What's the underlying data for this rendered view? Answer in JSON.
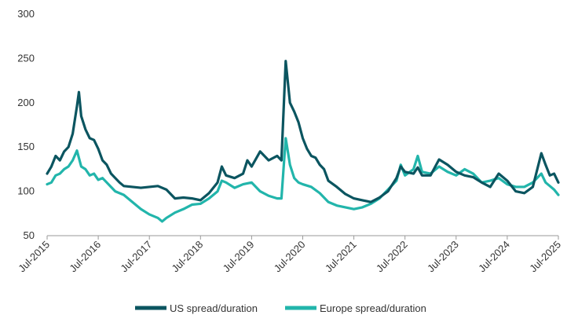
{
  "chart_data": {
    "type": "line",
    "title": "",
    "xlabel": "",
    "ylabel": "",
    "ylim": [
      50,
      300
    ],
    "xlim": [
      "2015-07",
      "2025-07"
    ],
    "grid": false,
    "legend": "bottom",
    "y_ticks": [
      "50",
      "100",
      "150",
      "200",
      "250",
      "300"
    ],
    "x_ticks": [
      "Jul-2015",
      "Jul-2016",
      "Jul-2017",
      "Jul-2018",
      "Jul-2019",
      "Jul-2020",
      "Jul-2021",
      "Jul-2022",
      "Jul-2023",
      "Jul-2024",
      "Jul-2025"
    ],
    "series": [
      {
        "name": "US spread/duration",
        "color": "#0b5560",
        "points": [
          [
            "2015-07",
            120
          ],
          [
            "2015-08",
            128
          ],
          [
            "2015-09",
            140
          ],
          [
            "2015-10",
            135
          ],
          [
            "2015-11",
            145
          ],
          [
            "2015-12",
            150
          ],
          [
            "2016-01",
            165
          ],
          [
            "2016-02",
            196
          ],
          [
            "2016-02-15",
            212
          ],
          [
            "2016-03",
            185
          ],
          [
            "2016-04",
            170
          ],
          [
            "2016-05",
            160
          ],
          [
            "2016-06",
            158
          ],
          [
            "2016-07",
            148
          ],
          [
            "2016-08",
            135
          ],
          [
            "2016-09",
            130
          ],
          [
            "2016-10",
            120
          ],
          [
            "2016-11",
            115
          ],
          [
            "2016-12",
            110
          ],
          [
            "2017-01",
            106
          ],
          [
            "2017-03",
            105
          ],
          [
            "2017-05",
            104
          ],
          [
            "2017-07",
            105
          ],
          [
            "2017-09",
            106
          ],
          [
            "2017-11",
            102
          ],
          [
            "2018-01",
            92
          ],
          [
            "2018-03",
            93
          ],
          [
            "2018-05",
            92
          ],
          [
            "2018-07",
            90
          ],
          [
            "2018-09",
            98
          ],
          [
            "2018-11",
            110
          ],
          [
            "2018-12",
            128
          ],
          [
            "2019-01",
            118
          ],
          [
            "2019-03",
            115
          ],
          [
            "2019-05",
            120
          ],
          [
            "2019-06",
            135
          ],
          [
            "2019-07",
            128
          ],
          [
            "2019-09",
            145
          ],
          [
            "2019-11",
            135
          ],
          [
            "2020-01",
            140
          ],
          [
            "2020-02",
            135
          ],
          [
            "2020-03",
            247
          ],
          [
            "2020-04",
            200
          ],
          [
            "2020-05",
            190
          ],
          [
            "2020-06",
            178
          ],
          [
            "2020-07",
            160
          ],
          [
            "2020-08",
            148
          ],
          [
            "2020-09",
            140
          ],
          [
            "2020-10",
            138
          ],
          [
            "2020-11",
            130
          ],
          [
            "2020-12",
            125
          ],
          [
            "2021-01",
            112
          ],
          [
            "2021-03",
            105
          ],
          [
            "2021-05",
            97
          ],
          [
            "2021-07",
            92
          ],
          [
            "2021-09",
            90
          ],
          [
            "2021-11",
            88
          ],
          [
            "2022-01",
            93
          ],
          [
            "2022-03",
            100
          ],
          [
            "2022-05",
            115
          ],
          [
            "2022-06",
            128
          ],
          [
            "2022-07",
            122
          ],
          [
            "2022-09",
            120
          ],
          [
            "2022-10",
            127
          ],
          [
            "2022-11",
            118
          ],
          [
            "2023-01",
            118
          ],
          [
            "2023-03",
            136
          ],
          [
            "2023-05",
            130
          ],
          [
            "2023-07",
            122
          ],
          [
            "2023-09",
            118
          ],
          [
            "2023-11",
            116
          ],
          [
            "2024-01",
            110
          ],
          [
            "2024-03",
            105
          ],
          [
            "2024-05",
            120
          ],
          [
            "2024-07",
            112
          ],
          [
            "2024-09",
            100
          ],
          [
            "2024-11",
            98
          ],
          [
            "2025-01",
            105
          ],
          [
            "2025-03",
            143
          ],
          [
            "2025-04",
            130
          ],
          [
            "2025-05",
            118
          ],
          [
            "2025-06",
            120
          ],
          [
            "2025-07",
            110
          ]
        ]
      },
      {
        "name": "Europe spread/duration",
        "color": "#22b5ab",
        "points": [
          [
            "2015-07",
            108
          ],
          [
            "2015-08",
            110
          ],
          [
            "2015-09",
            118
          ],
          [
            "2015-10",
            120
          ],
          [
            "2015-11",
            125
          ],
          [
            "2015-12",
            128
          ],
          [
            "2016-01",
            135
          ],
          [
            "2016-02",
            146
          ],
          [
            "2016-03",
            128
          ],
          [
            "2016-04",
            125
          ],
          [
            "2016-05",
            118
          ],
          [
            "2016-06",
            120
          ],
          [
            "2016-07",
            113
          ],
          [
            "2016-08",
            115
          ],
          [
            "2016-09",
            110
          ],
          [
            "2016-10",
            105
          ],
          [
            "2016-11",
            100
          ],
          [
            "2016-12",
            98
          ],
          [
            "2017-01",
            96
          ],
          [
            "2017-03",
            88
          ],
          [
            "2017-05",
            80
          ],
          [
            "2017-07",
            74
          ],
          [
            "2017-09",
            70
          ],
          [
            "2017-10",
            66
          ],
          [
            "2017-11",
            70
          ],
          [
            "2018-01",
            76
          ],
          [
            "2018-03",
            80
          ],
          [
            "2018-05",
            85
          ],
          [
            "2018-07",
            86
          ],
          [
            "2018-09",
            92
          ],
          [
            "2018-11",
            100
          ],
          [
            "2018-12",
            112
          ],
          [
            "2019-01",
            110
          ],
          [
            "2019-03",
            104
          ],
          [
            "2019-05",
            108
          ],
          [
            "2019-07",
            110
          ],
          [
            "2019-09",
            100
          ],
          [
            "2019-11",
            95
          ],
          [
            "2020-01",
            92
          ],
          [
            "2020-02",
            92
          ],
          [
            "2020-03",
            160
          ],
          [
            "2020-04",
            130
          ],
          [
            "2020-05",
            115
          ],
          [
            "2020-06",
            110
          ],
          [
            "2020-07",
            108
          ],
          [
            "2020-09",
            105
          ],
          [
            "2020-11",
            98
          ],
          [
            "2021-01",
            88
          ],
          [
            "2021-03",
            84
          ],
          [
            "2021-05",
            82
          ],
          [
            "2021-07",
            80
          ],
          [
            "2021-09",
            82
          ],
          [
            "2021-11",
            86
          ],
          [
            "2022-01",
            92
          ],
          [
            "2022-03",
            102
          ],
          [
            "2022-05",
            112
          ],
          [
            "2022-06",
            130
          ],
          [
            "2022-07",
            118
          ],
          [
            "2022-09",
            125
          ],
          [
            "2022-10",
            140
          ],
          [
            "2022-11",
            122
          ],
          [
            "2023-01",
            120
          ],
          [
            "2023-03",
            128
          ],
          [
            "2023-05",
            122
          ],
          [
            "2023-07",
            118
          ],
          [
            "2023-09",
            125
          ],
          [
            "2023-11",
            120
          ],
          [
            "2024-01",
            110
          ],
          [
            "2024-03",
            112
          ],
          [
            "2024-05",
            115
          ],
          [
            "2024-07",
            108
          ],
          [
            "2024-09",
            105
          ],
          [
            "2024-11",
            105
          ],
          [
            "2025-01",
            110
          ],
          [
            "2025-03",
            120
          ],
          [
            "2025-04",
            110
          ],
          [
            "2025-05",
            106
          ],
          [
            "2025-06",
            102
          ],
          [
            "2025-07",
            96
          ]
        ]
      }
    ]
  }
}
